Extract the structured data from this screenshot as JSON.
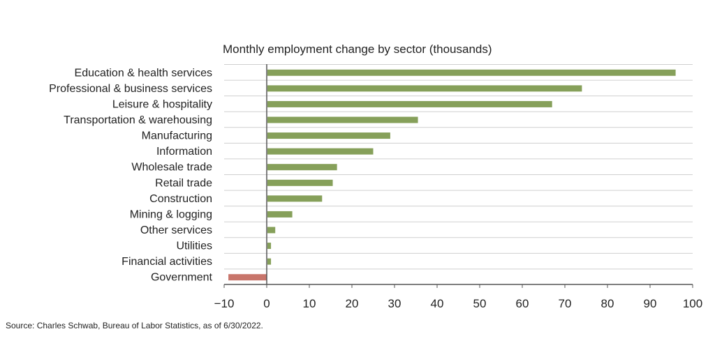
{
  "chart_data": {
    "type": "bar",
    "orientation": "horizontal",
    "title": "Monthly employment change by sector (thousands)",
    "categories": [
      "Education & health services",
      "Professional & business services",
      "Leisure & hospitality",
      "Transportation & warehousing",
      "Manufacturing",
      "Information",
      "Wholesale trade",
      "Retail trade",
      "Construction",
      "Mining & logging",
      "Other services",
      "Utilities",
      "Financial activities",
      "Government"
    ],
    "values": [
      96,
      74,
      67,
      35.5,
      29,
      25,
      16.5,
      15.5,
      13,
      6,
      2,
      1,
      1,
      -9
    ],
    "xlim": [
      -10,
      100
    ],
    "xticks": [
      -10,
      0,
      10,
      20,
      30,
      40,
      50,
      60,
      70,
      80,
      90,
      100
    ],
    "grid": true,
    "colors": {
      "positive": "#86a05a",
      "negative": "#c8756b",
      "grid": "#cfcfcf",
      "axis": "#555555",
      "text": "#222222"
    }
  },
  "footer": {
    "source": "Source: Charles Schwab, Bureau of Labor Statistics, as of 6/30/2022."
  }
}
